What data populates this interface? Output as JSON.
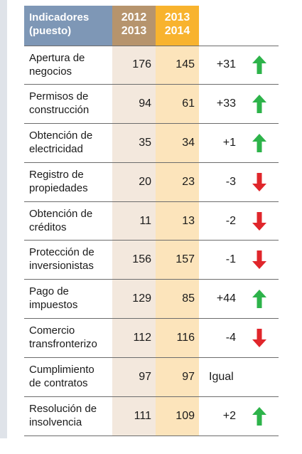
{
  "header": {
    "label_line1": "Indicadores",
    "label_line2": "(puesto)",
    "col1_line1": "2012",
    "col1_line2": "2013",
    "col2_line1": "2013",
    "col2_line2": "2014"
  },
  "colors": {
    "header_label_bg": "#7e97b6",
    "col1_header_bg": "#b6946d",
    "col2_header_bg": "#f8b32e",
    "col1_cell_bg": "#f3e8dd",
    "col2_cell_bg": "#fce4bb",
    "arrow_up": "#2db34a",
    "arrow_down": "#e0262b"
  },
  "rows": [
    {
      "line1": "Apertura de",
      "line2": "negocios",
      "v2012": "176",
      "v2013": "145",
      "change": "+31",
      "trend": "up-arrow-icon"
    },
    {
      "line1": "Permisos de",
      "line2": "construcción",
      "v2012": "94",
      "v2013": "61",
      "change": "+33",
      "trend": "up-arrow-icon"
    },
    {
      "line1": "Obtención de",
      "line2": "electricidad",
      "v2012": "35",
      "v2013": "34",
      "change": "+1",
      "trend": "up-arrow-icon"
    },
    {
      "line1": "Registro de",
      "line2": "propiedades",
      "v2012": "20",
      "v2013": "23",
      "change": "-3",
      "trend": "down-arrow-icon"
    },
    {
      "line1": "Obtención de",
      "line2": "créditos",
      "v2012": "11",
      "v2013": "13",
      "change": "-2",
      "trend": "down-arrow-icon"
    },
    {
      "line1": "Protección de",
      "line2": "inversionistas",
      "v2012": "156",
      "v2013": "157",
      "change": "-1",
      "trend": "down-arrow-icon"
    },
    {
      "line1": "Pago de",
      "line2": "impuestos",
      "v2012": "129",
      "v2013": "85",
      "change": "+44",
      "trend": "up-arrow-icon"
    },
    {
      "line1": "Comercio",
      "line2": "transfronterizo",
      "v2012": "112",
      "v2013": "116",
      "change": "-4",
      "trend": "down-arrow-icon"
    },
    {
      "line1": "Cumplimiento",
      "line2": "de contratos",
      "v2012": "97",
      "v2013": "97",
      "change": "Igual",
      "trend": "none"
    },
    {
      "line1": "Resolución de",
      "line2": "insolvencia",
      "v2012": "111",
      "v2013": "109",
      "change": "+2",
      "trend": "up-arrow-icon"
    }
  ]
}
